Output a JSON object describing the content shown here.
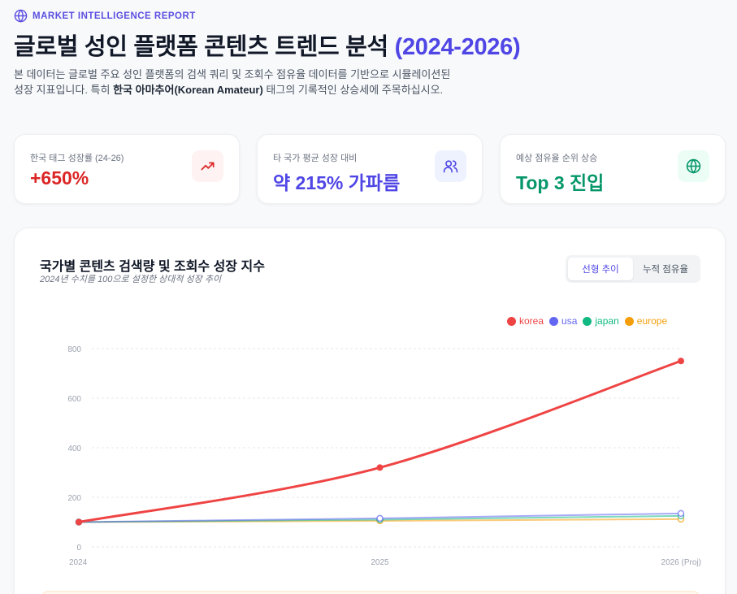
{
  "header": {
    "eyebrow": "MARKET INTELLIGENCE REPORT",
    "eyebrow_icon": "globe-icon",
    "title_main": "글로벌 성인 플랫폼 콘텐츠 트렌드 분석 ",
    "title_accent": "(2024-2026)",
    "desc_part1": "본 데이터는 글로벌 주요 성인 플랫폼의 검색 쿼리 및 조회수 점유율 데이터를 기반으로 시뮬레이션된 성장 지표입니다. 특히 ",
    "desc_bold": "한국 아마추어(Korean Amateur)",
    "desc_part2": " 태그의 기록적인 상승세에 주목하십시오."
  },
  "kpis": [
    {
      "label": "한국 태그 성장률 (24-26)",
      "value": "+650%",
      "icon": "trending-up-icon",
      "color": "#dc2626",
      "icon_bg": "#fef2f2"
    },
    {
      "label": "타 국가 평균 성장 대비",
      "value": "약 215% 가파름",
      "icon": "users-icon",
      "color": "#4f46e5",
      "icon_bg": "#eef2ff"
    },
    {
      "label": "예상 점유율 순위 상승",
      "value": "Top 3 진입",
      "icon": "globe-icon",
      "color": "#059669",
      "icon_bg": "#ecfdf5"
    }
  ],
  "chart_card": {
    "title": "국가별 콘텐츠 검색량 및 조회수 성장 지수",
    "subtitle": "2024년 수치를 100으로 설정한 상대적 성장 추이",
    "toggle": [
      {
        "label": "선형 추이",
        "active": true
      },
      {
        "label": "누적 점유율",
        "active": false
      }
    ]
  },
  "chart_data": {
    "type": "line",
    "title": "국가별 콘텐츠 검색량 및 조회수 성장 지수",
    "subtitle": "2024년 수치를 100으로 설정한 상대적 성장 추이",
    "categories": [
      "2024",
      "2025",
      "2026 (Proj)"
    ],
    "series": [
      {
        "name": "korea",
        "color": "#ef4444",
        "values": [
          100,
          320,
          750
        ]
      },
      {
        "name": "usa",
        "color": "#6366f1",
        "values": [
          100,
          115,
          135
        ]
      },
      {
        "name": "japan",
        "color": "#10b981",
        "values": [
          100,
          110,
          125
        ]
      },
      {
        "name": "europe",
        "color": "#f59e0b",
        "values": [
          100,
          105,
          112
        ]
      }
    ],
    "yticks": [
      0,
      200,
      400,
      600,
      800
    ],
    "ylim": [
      0,
      800
    ],
    "xlabel": "",
    "ylabel": "",
    "grid": true,
    "legend_position": "top-right"
  }
}
